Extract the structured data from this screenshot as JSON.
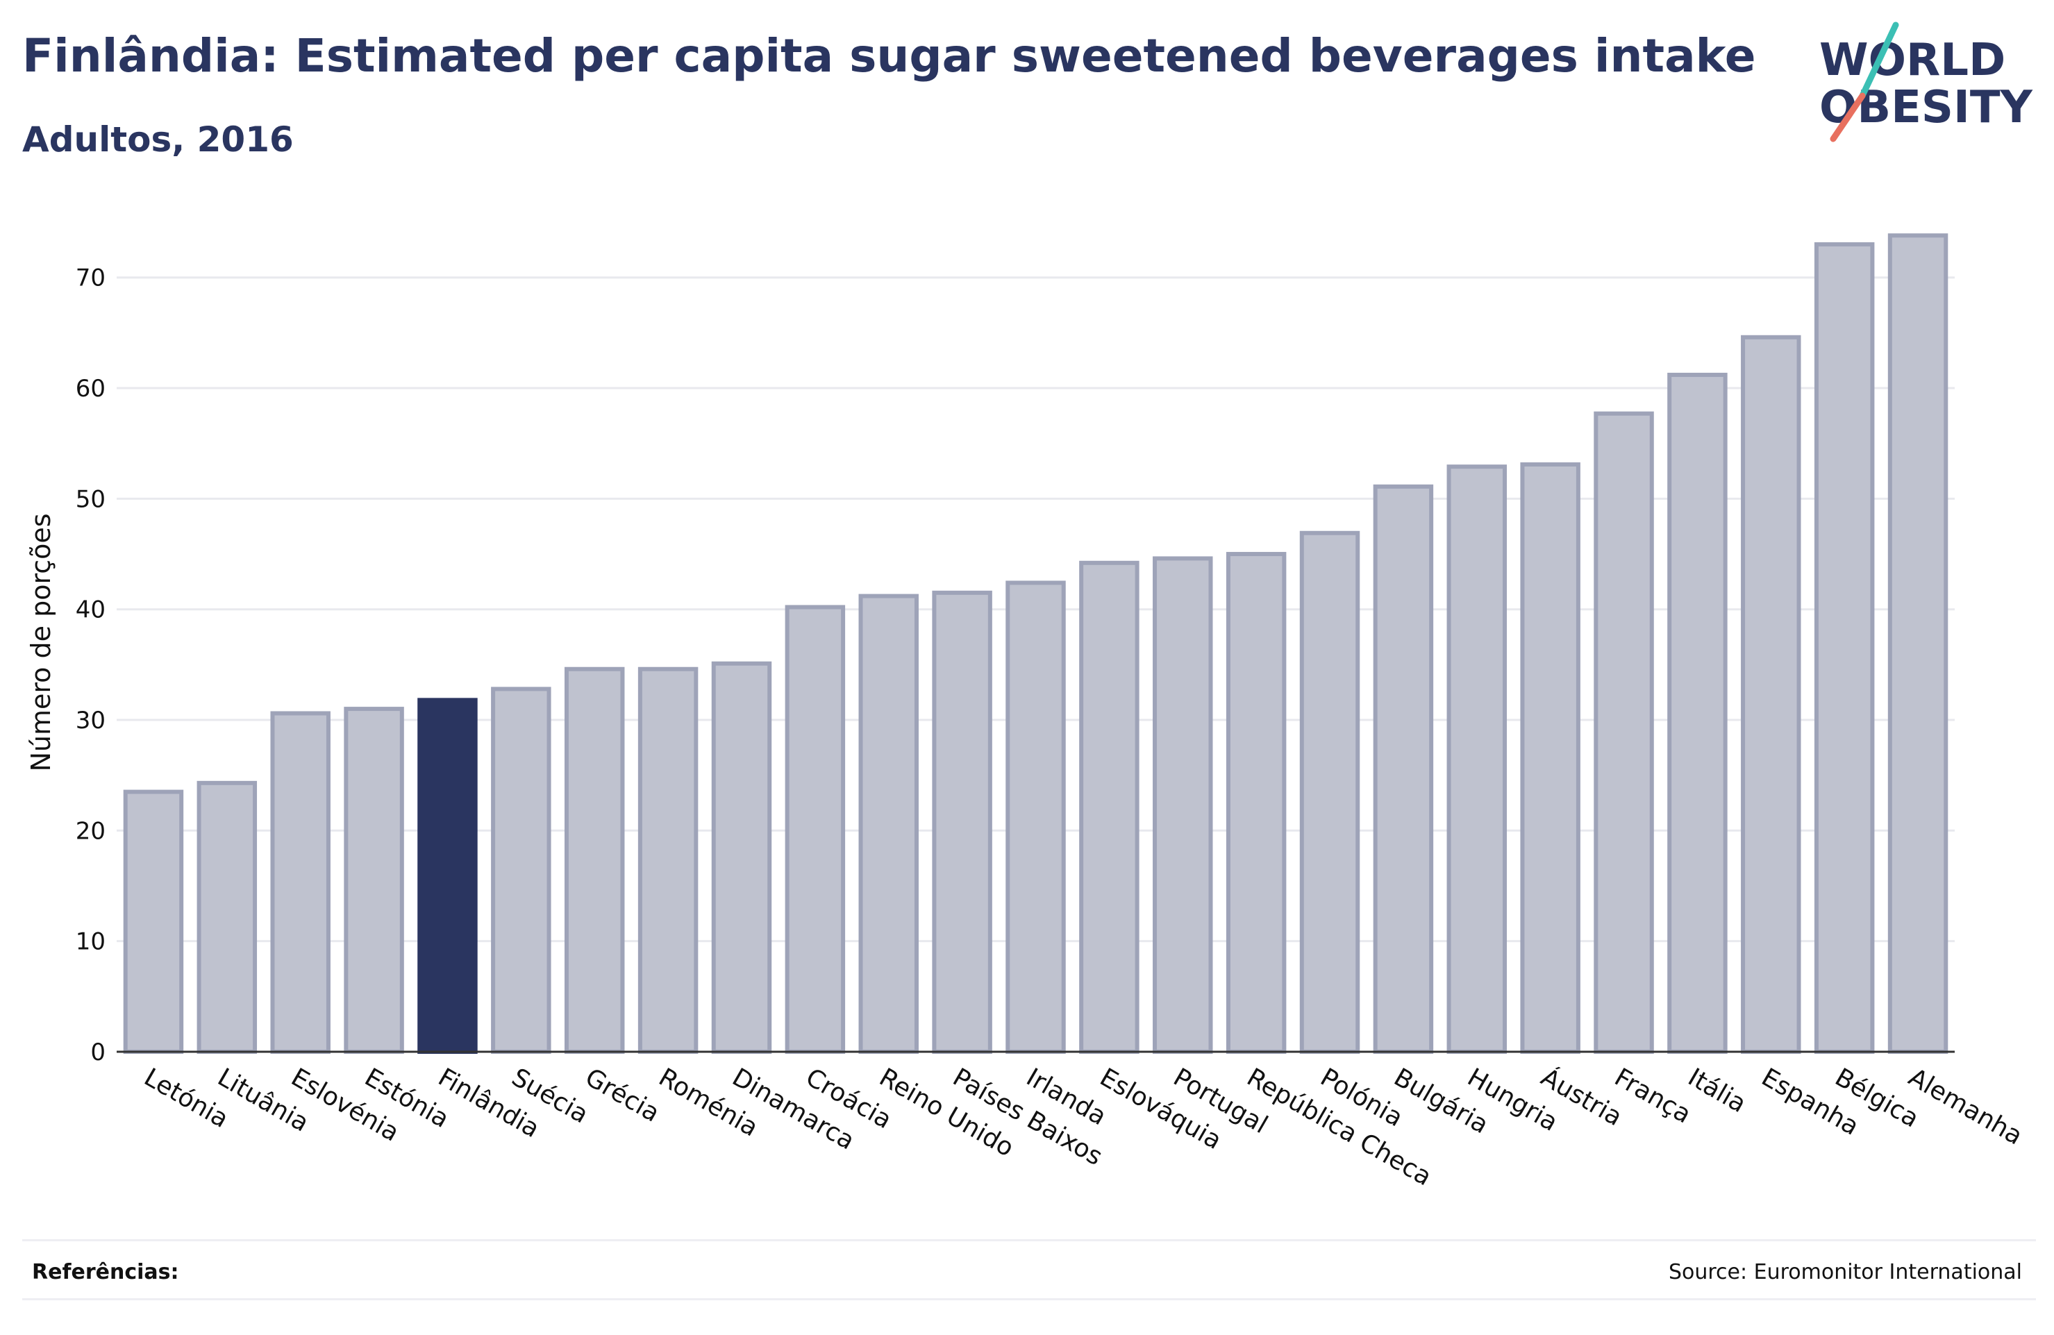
{
  "header": {
    "title": "Finlândia: Estimated per capita sugar sweetened beverages intake",
    "subtitle": "Adultos, 2016"
  },
  "logo": {
    "line1": "WORLD",
    "line2": "OBESITY"
  },
  "footer": {
    "references_label": "Referências:",
    "source": "Source: Euromonitor International"
  },
  "colors": {
    "highlight": "#2a3560",
    "bar_fill": "#bfc2cf",
    "bar_stroke": "#9ea3b8",
    "grid": "#e8e9ee",
    "logo_teal": "#3bbfb4",
    "logo_coral": "#e8705f"
  },
  "chart_data": {
    "type": "bar",
    "ylabel": "Número de porções",
    "xlabel": "",
    "ylim": [
      0,
      74
    ],
    "yticks": [
      0,
      10,
      20,
      30,
      40,
      50,
      60,
      70
    ],
    "grid": true,
    "highlight": "Finlândia",
    "categories": [
      "Letónia",
      "Lituânia",
      "Eslovénia",
      "Estónia",
      "Finlândia",
      "Suécia",
      "Grécia",
      "Roménia",
      "Dinamarca",
      "Croácia",
      "Reino Unido",
      "Países Baixos",
      "Irlanda",
      "Eslováquia",
      "Portugal",
      "República Checa",
      "Polónia",
      "Bulgária",
      "Hungria",
      "Áustria",
      "França",
      "Itália",
      "Espanha",
      "Bélgica",
      "Alemanha"
    ],
    "values": [
      23.5,
      24.3,
      30.6,
      31.0,
      31.8,
      32.8,
      34.6,
      34.6,
      35.1,
      40.2,
      41.2,
      41.5,
      42.4,
      44.2,
      44.6,
      45.0,
      46.9,
      51.1,
      52.9,
      53.1,
      57.7,
      61.2,
      64.6,
      73.0,
      73.8
    ]
  }
}
